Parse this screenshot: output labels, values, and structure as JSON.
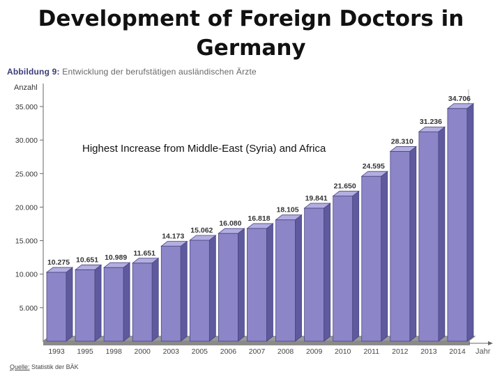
{
  "slide": {
    "title": "Development of Foreign Doctors in Germany"
  },
  "figure": {
    "caption_prefix": "Abbildung 9:",
    "caption_text": "Entwicklung der berufstätigen ausländischen Ärzte",
    "source_label": "Quelle:",
    "source_text": "Statistik der BÄK"
  },
  "chart_data": {
    "type": "bar",
    "title": "",
    "annotation": "Highest Increase from Middle-East (Syria) and Africa",
    "ylabel": "Anzahl",
    "xlabel": "Jahr",
    "ylim": [
      0,
      35000
    ],
    "yticks": [
      {
        "value": 5000,
        "label": "5.000"
      },
      {
        "value": 10000,
        "label": "10.000"
      },
      {
        "value": 15000,
        "label": "15.000"
      },
      {
        "value": 20000,
        "label": "20.000"
      },
      {
        "value": 25000,
        "label": "25.000"
      },
      {
        "value": 30000,
        "label": "30.000"
      },
      {
        "value": 35000,
        "label": "35.000"
      }
    ],
    "categories": [
      "1993",
      "1995",
      "1998",
      "2000",
      "2003",
      "2005",
      "2006",
      "2007",
      "2008",
      "2009",
      "2010",
      "2011",
      "2012",
      "2013",
      "2014"
    ],
    "values": [
      10275,
      10651,
      10989,
      11651,
      14173,
      15062,
      16080,
      16818,
      18105,
      19841,
      21650,
      24595,
      28310,
      31236,
      34706
    ],
    "value_labels": [
      "10.275",
      "10.651",
      "10.989",
      "11.651",
      "14.173",
      "15.062",
      "16.080",
      "16.818",
      "18.105",
      "19.841",
      "21.650",
      "24.595",
      "28.310",
      "31.236",
      "34.706"
    ],
    "colors": {
      "bar_front": "#8c86c8",
      "bar_side": "#5f5a9e",
      "bar_top": "#b2aee0",
      "floor": "#7a7a7a",
      "axis": "#666666",
      "text": "#333333"
    }
  }
}
